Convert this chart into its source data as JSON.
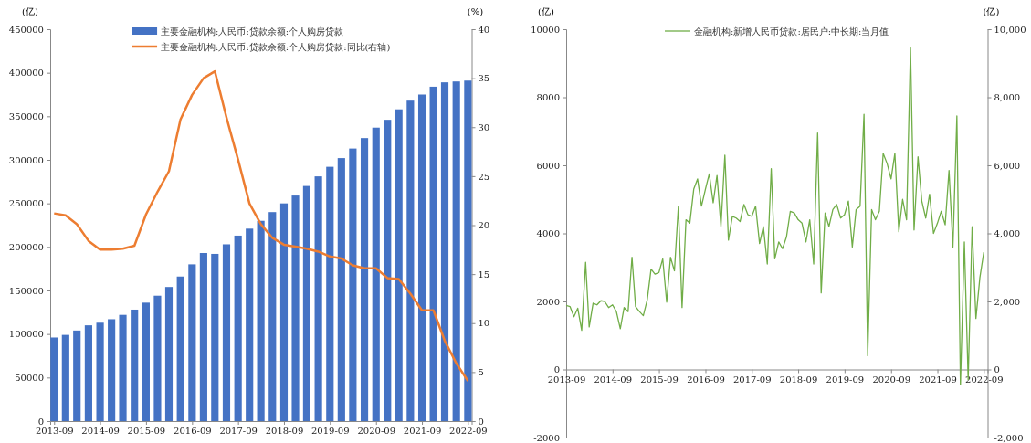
{
  "chart_data": [
    {
      "type": "bar",
      "ylabel": "(亿)",
      "y2label": "(%)",
      "legend": "top",
      "x": [
        "2013-09",
        "2013-12",
        "2014-03",
        "2014-06",
        "2014-09",
        "2014-12",
        "2015-03",
        "2015-06",
        "2015-09",
        "2015-12",
        "2016-03",
        "2016-06",
        "2016-09",
        "2016-12",
        "2017-03",
        "2017-06",
        "2017-09",
        "2017-12",
        "2018-03",
        "2018-06",
        "2018-09",
        "2018-12",
        "2019-03",
        "2019-06",
        "2019-09",
        "2019-12",
        "2020-03",
        "2020-06",
        "2020-09",
        "2020-12",
        "2021-03",
        "2021-06",
        "2021-09",
        "2021-12",
        "2022-03",
        "2022-06",
        "2022-09"
      ],
      "series": [
        {
          "name": "主要金融机构:人民币:贷款余额:个人购房贷款",
          "color": "#4472c4",
          "values": [
            96000,
            99000,
            104000,
            110000,
            113000,
            117000,
            122000,
            128000,
            136000,
            144000,
            154000,
            166000,
            180000,
            193000,
            192000,
            203000,
            213000,
            221000,
            230000,
            240000,
            250000,
            259000,
            270000,
            281000,
            292000,
            302000,
            313000,
            325000,
            337000,
            346000,
            358000,
            368000,
            375000,
            384000,
            389000,
            390000,
            391000
          ]
        },
        {
          "name": "主要金融机构:人民币:贷款余额:个人购房贷款:同比(右轴)",
          "type": "line",
          "axis": "y2",
          "color": "#ed7d31",
          "values": [
            21.2,
            21.0,
            20.1,
            18.4,
            17.5,
            17.5,
            17.6,
            17.9,
            21.1,
            23.4,
            25.5,
            30.8,
            33.3,
            35.0,
            35.7,
            31.0,
            26.7,
            22.2,
            20.1,
            18.7,
            18.0,
            17.8,
            17.6,
            17.3,
            16.8,
            16.6,
            15.9,
            15.6,
            15.6,
            14.6,
            14.5,
            13.0,
            11.3,
            11.3,
            8.2,
            5.9,
            4.1
          ]
        }
      ],
      "xlim": [
        "2013-08",
        "2022-10"
      ],
      "xticks": [
        "2013-09",
        "2014-09",
        "2015-09",
        "2016-09",
        "2017-09",
        "2018-09",
        "2019-09",
        "2020-09",
        "2021-09",
        "2022-09"
      ],
      "ylim": [
        0,
        450000
      ],
      "yticks": [
        0,
        50000,
        100000,
        150000,
        200000,
        250000,
        300000,
        350000,
        400000,
        450000
      ],
      "y2lim": [
        0,
        40
      ],
      "y2ticks": [
        0,
        5,
        10,
        15,
        20,
        25,
        30,
        35,
        40
      ]
    },
    {
      "type": "line",
      "ylabel": "(亿)",
      "y2label": "(亿)",
      "legend": "top",
      "x": [
        "2013-09",
        "2013-10",
        "2013-11",
        "2013-12",
        "2014-01",
        "2014-02",
        "2014-03",
        "2014-04",
        "2014-05",
        "2014-06",
        "2014-07",
        "2014-08",
        "2014-09",
        "2014-10",
        "2014-11",
        "2014-12",
        "2015-01",
        "2015-02",
        "2015-03",
        "2015-04",
        "2015-05",
        "2015-06",
        "2015-07",
        "2015-08",
        "2015-09",
        "2015-10",
        "2015-11",
        "2015-12",
        "2016-01",
        "2016-02",
        "2016-03",
        "2016-04",
        "2016-05",
        "2016-06",
        "2016-07",
        "2016-08",
        "2016-09",
        "2016-10",
        "2016-11",
        "2016-12",
        "2017-01",
        "2017-02",
        "2017-03",
        "2017-04",
        "2017-05",
        "2017-06",
        "2017-07",
        "2017-08",
        "2017-09",
        "2017-10",
        "2017-11",
        "2017-12",
        "2018-01",
        "2018-02",
        "2018-03",
        "2018-04",
        "2018-05",
        "2018-06",
        "2018-07",
        "2018-08",
        "2018-09",
        "2018-10",
        "2018-11",
        "2018-12",
        "2019-01",
        "2019-02",
        "2019-03",
        "2019-04",
        "2019-05",
        "2019-06",
        "2019-07",
        "2019-08",
        "2019-09",
        "2019-10",
        "2019-11",
        "2019-12",
        "2020-01",
        "2020-02",
        "2020-03",
        "2020-04",
        "2020-05",
        "2020-06",
        "2020-07",
        "2020-08",
        "2020-09",
        "2020-10",
        "2020-11",
        "2020-12",
        "2021-01",
        "2021-02",
        "2021-03",
        "2021-04",
        "2021-05",
        "2021-06",
        "2021-07",
        "2021-08",
        "2021-09",
        "2021-10",
        "2021-11",
        "2021-12",
        "2022-01",
        "2022-02",
        "2022-03",
        "2022-04",
        "2022-05",
        "2022-06",
        "2022-07",
        "2022-08",
        "2022-09"
      ],
      "series": [
        {
          "name": "金融机构:新增人民币贷款:居民户:中长期:当月值",
          "color": "#70ad47",
          "values": [
            1880,
            1850,
            1550,
            1800,
            1150,
            3150,
            1250,
            1950,
            1900,
            2020,
            2000,
            1820,
            1900,
            1700,
            1200,
            1820,
            1700,
            3300,
            1850,
            1700,
            1580,
            2050,
            2950,
            2800,
            2850,
            3250,
            1980,
            3300,
            2900,
            4800,
            1820,
            4400,
            4300,
            5300,
            5600,
            4800,
            5300,
            5750,
            4900,
            5700,
            4200,
            6300,
            3800,
            4500,
            4450,
            4350,
            4850,
            4550,
            4500,
            4800,
            3700,
            4200,
            3100,
            5900,
            3250,
            3750,
            3550,
            3900,
            4650,
            4600,
            4400,
            4300,
            3750,
            4400,
            3100,
            6950,
            2250,
            4600,
            4200,
            4700,
            4850,
            4450,
            4550,
            4950,
            3600,
            4700,
            4800,
            7500,
            400,
            4700,
            4400,
            4650,
            6350,
            6050,
            5600,
            6350,
            4050,
            5000,
            4400,
            9450,
            4100,
            6250,
            4950,
            4450,
            5150,
            4000,
            4300,
            4650,
            4250,
            5850,
            3600,
            7450,
            -450,
            3750,
            -300,
            4200,
            1500,
            2700,
            3450
          ]
        }
      ],
      "xlim": [
        "2013-09",
        "2022-10"
      ],
      "xticks": [
        "2013-09",
        "2014-09",
        "2015-09",
        "2016-09",
        "2017-09",
        "2018-09",
        "2019-09",
        "2020-09",
        "2021-09",
        "2022-09"
      ],
      "ylim": [
        -2000,
        10000
      ],
      "yticks": [
        -2000,
        0,
        2000,
        4000,
        6000,
        8000,
        10000
      ],
      "y2lim": [
        -2000,
        10000
      ],
      "y2ticks": [
        {
          "value": -2000,
          "label": "-2,000"
        },
        0,
        {
          "value": 2000,
          "label": "2,000"
        },
        {
          "value": 4000,
          "label": "4,000"
        },
        {
          "value": 6000,
          "label": "6,000"
        },
        {
          "value": 8000,
          "label": "8,000"
        },
        {
          "value": 10000,
          "label": "10,000"
        }
      ]
    }
  ]
}
